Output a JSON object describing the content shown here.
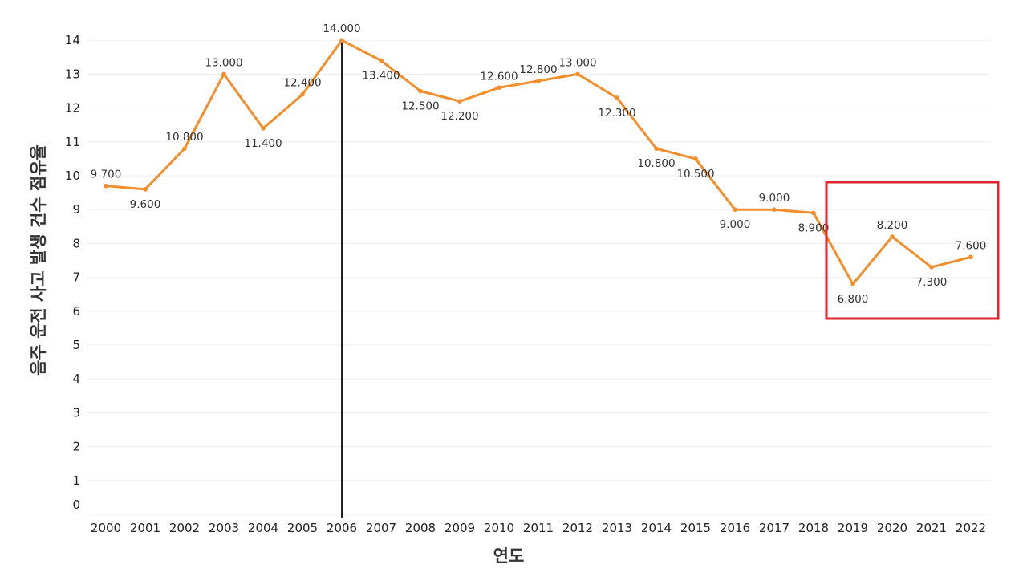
{
  "chart_data": {
    "type": "line",
    "title": "",
    "xlabel": "연도",
    "ylabel": "음주 운전 사고 발생 건수 점유율",
    "categories": [
      "2000",
      "2001",
      "2002",
      "2003",
      "2004",
      "2005",
      "2006",
      "2007",
      "2008",
      "2009",
      "2010",
      "2011",
      "2012",
      "2013",
      "2014",
      "2015",
      "2016",
      "2017",
      "2018",
      "2019",
      "2020",
      "2021",
      "2022"
    ],
    "series": [
      {
        "name": "음주 운전 사고 발생 건수 점유율",
        "color": "#F28E2B",
        "values": [
          9.7,
          9.6,
          10.8,
          13.0,
          11.4,
          12.4,
          14.0,
          13.4,
          12.5,
          12.2,
          12.6,
          12.8,
          13.0,
          12.3,
          10.8,
          10.5,
          9.0,
          9.0,
          8.9,
          6.8,
          8.2,
          7.3,
          7.6
        ],
        "data_labels": [
          "9.700",
          "9.600",
          "10.800",
          "13.000",
          "11.400",
          "12.400",
          "14.000",
          "13.400",
          "12.500",
          "12.200",
          "12.600",
          "12.800",
          "13.000",
          "12.300",
          "10.800",
          "10.500",
          "9.000",
          "9.000",
          "8.900",
          "6.800",
          "8.200",
          "7.300",
          "7.600"
        ]
      }
    ],
    "yticks": [
      "0",
      "1",
      "2",
      "3",
      "4",
      "5",
      "6",
      "7",
      "8",
      "9",
      "10",
      "11",
      "12",
      "13",
      "14"
    ],
    "ylim": [
      0,
      14
    ],
    "grid": true,
    "reference_line": {
      "category": "2006",
      "color": "#222222"
    },
    "highlight_box": {
      "from": "2019",
      "to": "2022",
      "color": "#E0262B"
    }
  }
}
